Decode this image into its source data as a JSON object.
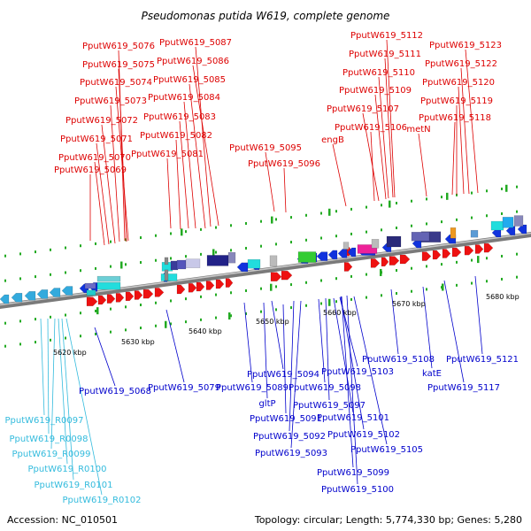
{
  "title": "Pseudomonas putida W619, complete genome",
  "footer": {
    "accession": "Accession: NC_010501",
    "topology": "Topology: circular; Length: 5,774,330 bp; Genes: 5,280"
  },
  "colors": {
    "label_top": "#dd0000",
    "label_bottom": "#0000cc",
    "label_rna": "#33bbdd",
    "backbone": "#8a8a8a",
    "tick": "#22aa22",
    "forward_gene": "#ee1111",
    "reverse_gene": "#1133dd"
  },
  "scale_labels": [
    "5620 kbp",
    "5630 kbp",
    "5640 kbp",
    "5650 kbp",
    "5660 kbp",
    "5670 kbp",
    "5680 kbp"
  ],
  "labels_top": [
    "PputW619_5076",
    "PputW619_5075",
    "PputW619_5074",
    "PputW619_5073",
    "PputW619_5072",
    "PputW619_5071",
    "PputW619_5070",
    "PputW619_5069",
    "PputW619_5087",
    "PputW619_5086",
    "PputW619_5085",
    "PputW619_5084",
    "PputW619_5083",
    "PputW619_5082",
    "PputW619_5081",
    "PputW619_5095",
    "PputW619_5096",
    "engB",
    "PputW619_5112",
    "PputW619_5111",
    "PputW619_5110",
    "PputW619_5109",
    "PputW619_5107",
    "PputW619_5106",
    "PputW619_5123",
    "PputW619_5122",
    "PputW619_5120",
    "PputW619_5119",
    "PputW619_5118",
    "metN"
  ],
  "labels_bottom": [
    "PputW619_5068",
    "PputW619_5079",
    "PputW619_5089",
    "PputW619_5094",
    "gltP",
    "PputW619_5091",
    "PputW619_5092",
    "PputW619_5093",
    "PputW619_5098",
    "PputW619_5097",
    "PputW619_5103",
    "PputW619_5101",
    "PputW619_5102",
    "PputW619_5105",
    "PputW619_5099",
    "PputW619_5100",
    "PputW619_5108",
    "katE",
    "PputW619_5117",
    "PputW619_5121"
  ],
  "labels_rna": [
    "PputW619_R0097",
    "PputW619_R0098",
    "PputW619_R0099",
    "PputW619_R0100",
    "PputW619_R0101",
    "PputW619_R0102"
  ]
}
